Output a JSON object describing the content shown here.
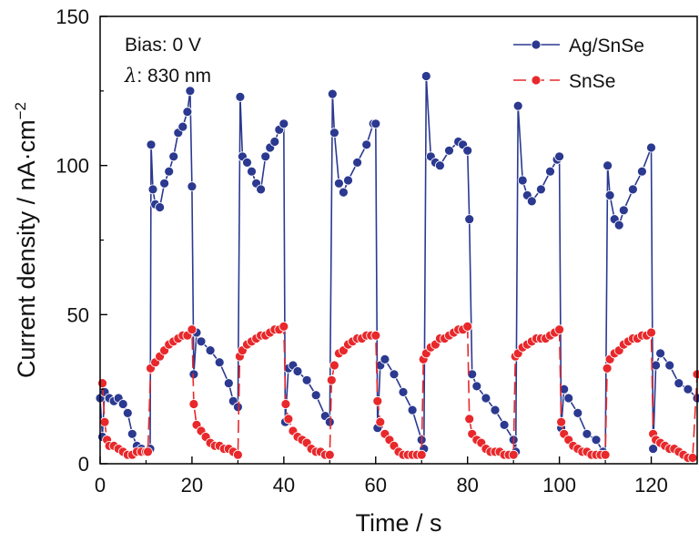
{
  "chart_data": {
    "type": "line",
    "xlabel": "Time / s",
    "ylabel": "Current density / nA·cm",
    "ylabel_sup": "−2",
    "xlim": [
      0,
      130
    ],
    "ylim": [
      0,
      150
    ],
    "xticks": [
      0,
      20,
      40,
      60,
      80,
      100,
      120
    ],
    "yticks": [
      0,
      50,
      100,
      150
    ],
    "grid": false,
    "legend_position": "top-right",
    "annotations": [
      {
        "label": "Bias: 0 V"
      },
      {
        "label_prefix": "λ",
        "label": ": 830 nm"
      }
    ],
    "colors": {
      "Ag/SnSe": "#2b3990",
      "SnSe": "#e8282b"
    },
    "series": [
      {
        "name": "Ag/SnSe",
        "x": [
          0.0,
          0.5,
          1.0,
          2.0,
          3.0,
          4.0,
          5.0,
          6.0,
          7.0,
          8.0,
          9.0,
          10.0,
          10.5,
          10.9,
          11.1,
          11.5,
          12.0,
          13.0,
          14.0,
          15.0,
          16.0,
          17.0,
          18.0,
          19.0,
          19.6,
          20.0,
          20.4,
          21.0,
          22.0,
          24.0,
          26.0,
          28.0,
          29.0,
          30.0,
          30.5,
          31.0,
          32.0,
          33.0,
          34.0,
          35.0,
          36.0,
          37.0,
          38.0,
          39.0,
          40.0,
          40.3,
          41.0,
          42.0,
          43.0,
          45.0,
          47.0,
          49.0,
          50.0,
          50.6,
          51.0,
          52.0,
          53.0,
          54.0,
          56.0,
          58.0,
          59.5,
          60.0,
          60.4,
          61.0,
          62.0,
          64.0,
          66.0,
          68.0,
          70.0,
          70.5,
          71.0,
          72.0,
          73.0,
          74.0,
          76.0,
          78.0,
          79.0,
          80.0,
          80.4,
          81.0,
          82.0,
          84.0,
          86.0,
          88.0,
          90.0,
          90.5,
          91.0,
          92.0,
          93.0,
          94.0,
          96.0,
          98.0,
          99.5,
          100.0,
          100.4,
          101.0,
          102.0,
          104.0,
          106.0,
          108.0,
          109.5,
          110.0,
          110.5,
          111.0,
          112.0,
          113.0,
          114.0,
          116.0,
          118.0,
          120.0,
          120.4,
          121.0,
          122.0,
          124.0,
          126.0,
          128.0,
          130.0
        ],
        "y": [
          22,
          9,
          24,
          22,
          21,
          22,
          20,
          17,
          10,
          6,
          5,
          4,
          4,
          5,
          107,
          92,
          87,
          86,
          94,
          98,
          103,
          111,
          113,
          118,
          125,
          93,
          30,
          44,
          41,
          38,
          34,
          27,
          21,
          19,
          123,
          103,
          101,
          98,
          94,
          92,
          103,
          106,
          108,
          112,
          114,
          14,
          32,
          33,
          31,
          28,
          23,
          16,
          14,
          124,
          111,
          94,
          91,
          95,
          101,
          107,
          114,
          114,
          12,
          33,
          35,
          30,
          24,
          18,
          8,
          5,
          130,
          103,
          101,
          100,
          105,
          108,
          107,
          105,
          82,
          30,
          26,
          22,
          18,
          13,
          8,
          4,
          120,
          95,
          90,
          88,
          92,
          98,
          102,
          103,
          12,
          25,
          22,
          17,
          10,
          8,
          4,
          3,
          100,
          90,
          82,
          80,
          85,
          92,
          98,
          106,
          5,
          33,
          37,
          33,
          27,
          25,
          22
        ]
      },
      {
        "name": "SnSe",
        "x": [
          0.5,
          1.0,
          1.5,
          2.0,
          3.0,
          4.0,
          5.0,
          6.0,
          7.0,
          8.0,
          9.0,
          10.0,
          10.4,
          11.0,
          12.0,
          13.0,
          14.0,
          15.0,
          16.0,
          17.0,
          18.0,
          19.0,
          20.0,
          20.4,
          21.0,
          22.0,
          23.0,
          24.0,
          25.0,
          26.0,
          27.0,
          28.0,
          29.0,
          30.0,
          30.4,
          31.0,
          32.0,
          33.0,
          34.0,
          35.0,
          36.0,
          37.0,
          38.0,
          39.0,
          40.0,
          40.4,
          41.0,
          42.0,
          43.0,
          44.0,
          45.0,
          46.0,
          47.0,
          48.0,
          49.0,
          50.0,
          50.4,
          51.0,
          52.0,
          53.0,
          54.0,
          55.0,
          56.0,
          57.0,
          58.0,
          59.0,
          60.0,
          60.4,
          61.0,
          62.0,
          63.0,
          64.0,
          65.0,
          66.0,
          67.0,
          68.0,
          69.0,
          70.0,
          70.4,
          71.0,
          72.0,
          73.0,
          74.0,
          75.0,
          76.0,
          77.0,
          78.0,
          79.0,
          80.0,
          80.4,
          81.0,
          82.0,
          83.0,
          84.0,
          85.0,
          86.0,
          87.0,
          88.0,
          89.0,
          90.0,
          90.4,
          91.0,
          92.0,
          93.0,
          94.0,
          95.0,
          96.0,
          97.0,
          98.0,
          99.0,
          100.0,
          100.4,
          101.0,
          102.0,
          103.0,
          104.0,
          105.0,
          106.0,
          107.0,
          108.0,
          109.0,
          110.0,
          110.4,
          111.0,
          112.0,
          113.0,
          114.0,
          115.0,
          116.0,
          117.0,
          118.0,
          119.0,
          120.0,
          120.4,
          121.0,
          122.0,
          123.0,
          124.0,
          125.0,
          126.0,
          127.0,
          128.0,
          129.0,
          130.0
        ],
        "y": [
          27,
          14,
          8,
          6,
          6,
          5,
          4,
          3,
          3,
          4,
          4,
          4,
          4,
          32,
          34,
          36,
          38,
          40,
          41,
          42,
          43,
          43,
          45,
          20,
          13,
          11,
          9,
          7,
          6,
          6,
          5,
          5,
          4,
          3,
          36,
          38,
          40,
          41,
          42,
          43,
          43,
          44,
          45,
          45,
          46,
          20,
          15,
          11,
          9,
          8,
          7,
          5,
          4,
          4,
          3,
          3,
          28,
          33,
          37,
          38,
          40,
          41,
          42,
          42,
          43,
          43,
          43,
          21,
          14,
          10,
          8,
          6,
          4,
          3,
          3,
          3,
          3,
          3,
          35,
          37,
          39,
          40,
          42,
          42,
          43,
          44,
          45,
          45,
          46,
          15,
          10,
          8,
          7,
          5,
          4,
          4,
          4,
          3,
          3,
          3,
          36,
          37,
          39,
          40,
          41,
          42,
          42,
          42,
          43,
          44,
          45,
          14,
          10,
          8,
          6,
          5,
          4,
          4,
          3,
          3,
          3,
          3,
          32,
          35,
          37,
          38,
          40,
          41,
          42,
          42,
          43,
          43,
          44,
          10,
          8,
          7,
          6,
          5,
          5,
          4,
          3,
          2,
          2,
          30
        ]
      }
    ]
  }
}
